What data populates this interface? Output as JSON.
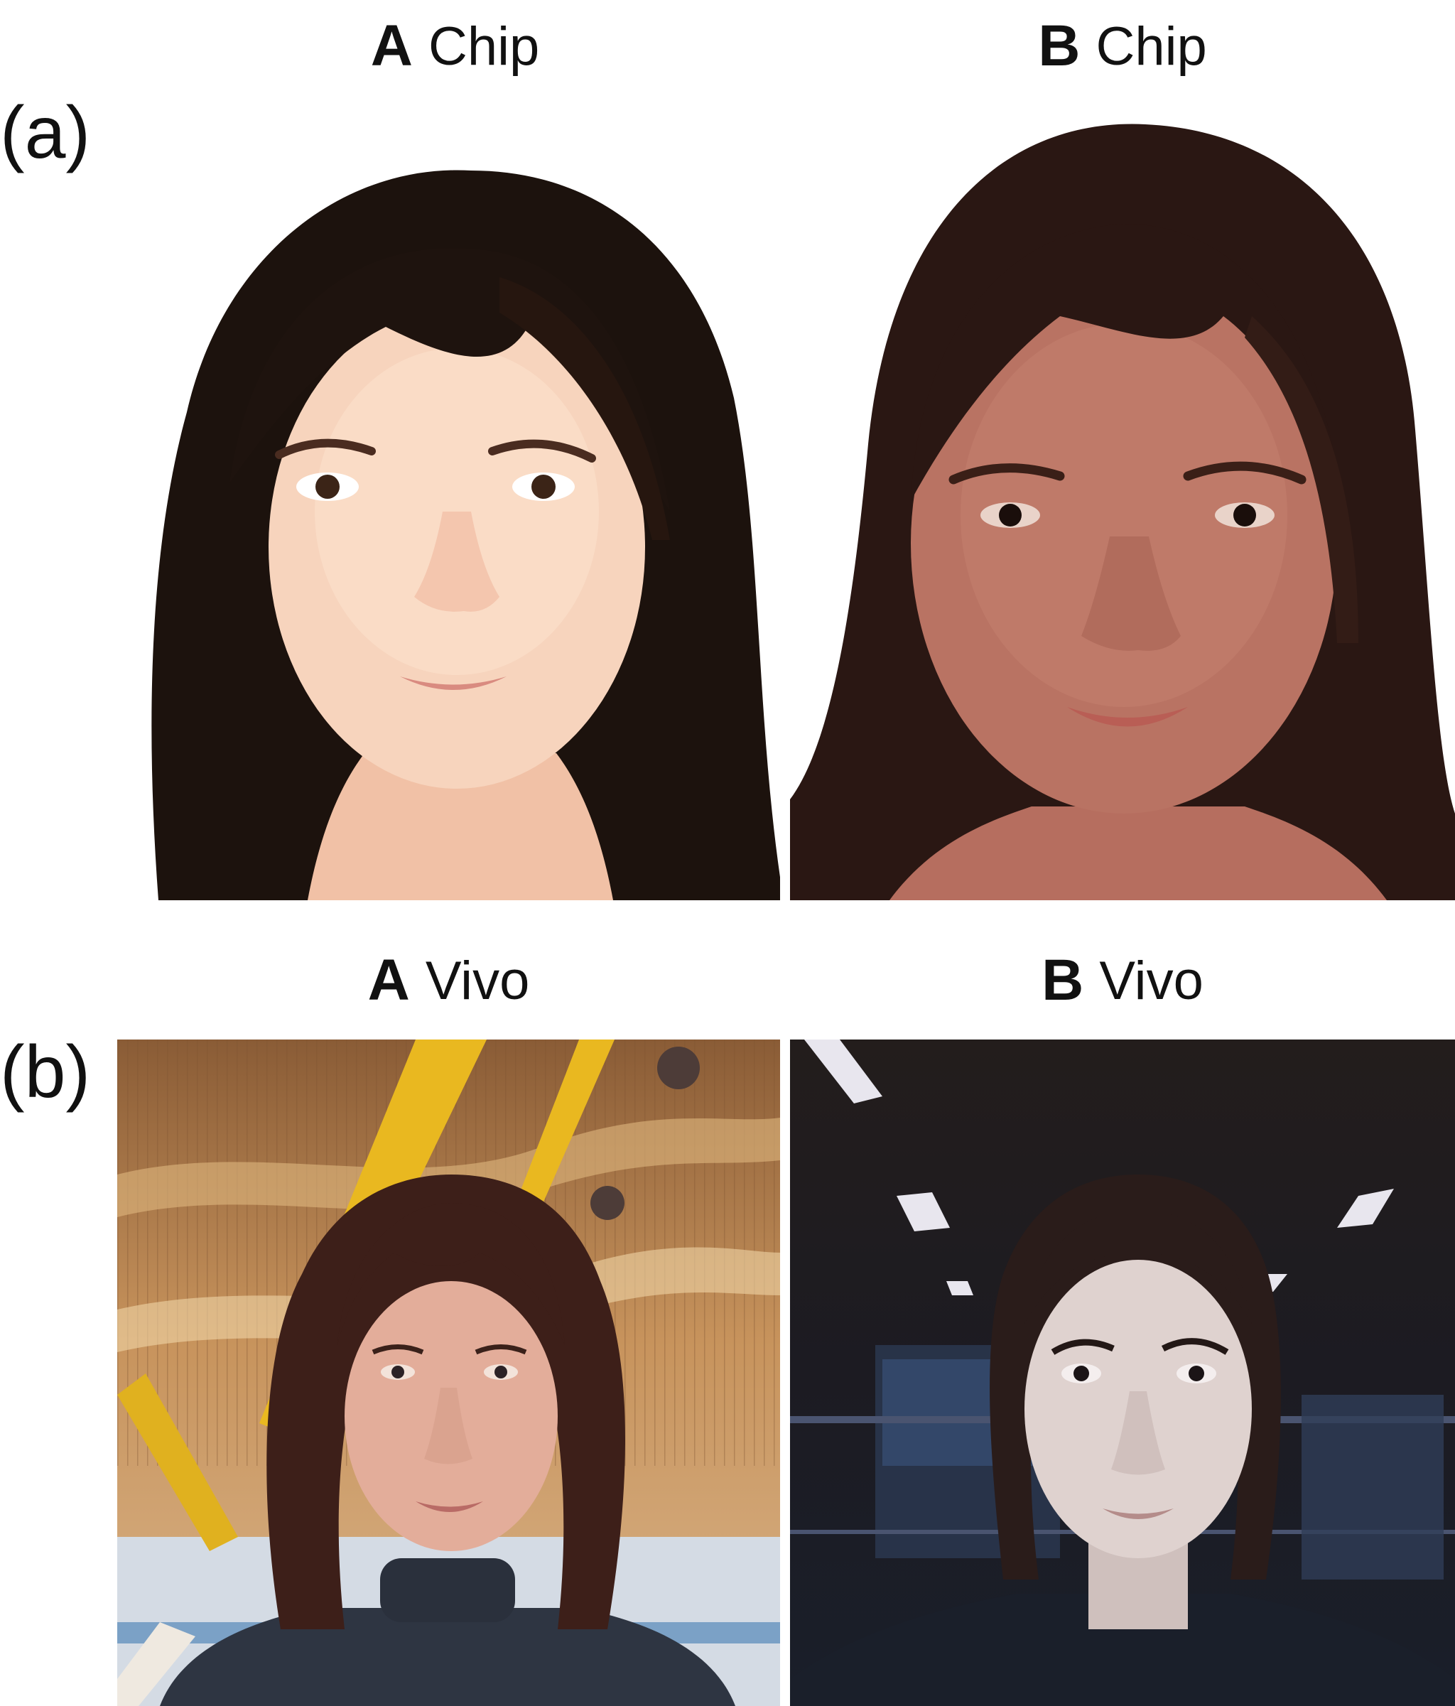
{
  "rows": [
    {
      "label": "(a)"
    },
    {
      "label": "(b)"
    }
  ],
  "panels": [
    {
      "subject": "A",
      "kind": "Chip"
    },
    {
      "subject": "B",
      "kind": "Chip"
    },
    {
      "subject": "A",
      "kind": "Vivo"
    },
    {
      "subject": "B",
      "kind": "Vivo"
    }
  ],
  "colors": {
    "chip_background": "#ffffff",
    "vivo_a_ceiling": "#b98a5a",
    "vivo_a_beams": "#e8b822",
    "vivo_b_background": "#1e1c1f",
    "hair_dark": "#1c100c"
  }
}
